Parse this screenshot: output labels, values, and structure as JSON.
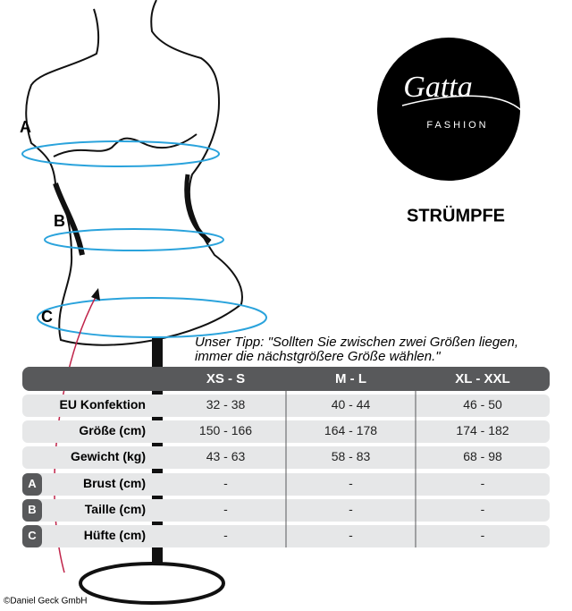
{
  "figure_labels": [
    "A",
    "B",
    "C"
  ],
  "logo": {
    "brand": "Gatta",
    "tagline": "FASHION"
  },
  "title": "STRÜMPFE",
  "tip": [
    "Unser Tipp: \"Sollten Sie zwischen zwei Größen liegen,",
    "immer die nächstgrößere Größe wählen.\""
  ],
  "table": {
    "columns": [
      "XS - S",
      "M - L",
      "XL - XXL"
    ],
    "rows": [
      {
        "label": "EU Konfektion",
        "cells": [
          "32 - 38",
          "40 - 44",
          "46 - 50"
        ]
      },
      {
        "label": "Größe (cm)",
        "cells": [
          "150 - 166",
          "164 - 178",
          "174 - 182"
        ]
      },
      {
        "label": "Gewicht (kg)",
        "cells": [
          "43 - 63",
          "58 - 83",
          "68 - 98"
        ]
      },
      {
        "badge": "A",
        "label": "Brust (cm)",
        "cells": [
          "-",
          "-",
          "-"
        ]
      },
      {
        "badge": "B",
        "label": "Taille (cm)",
        "cells": [
          "-",
          "-",
          "-"
        ]
      },
      {
        "badge": "C",
        "label": "Hüfte (cm)",
        "cells": [
          "-",
          "-",
          "-"
        ]
      }
    ]
  },
  "copyright": "©Daniel Geck GmbH"
}
